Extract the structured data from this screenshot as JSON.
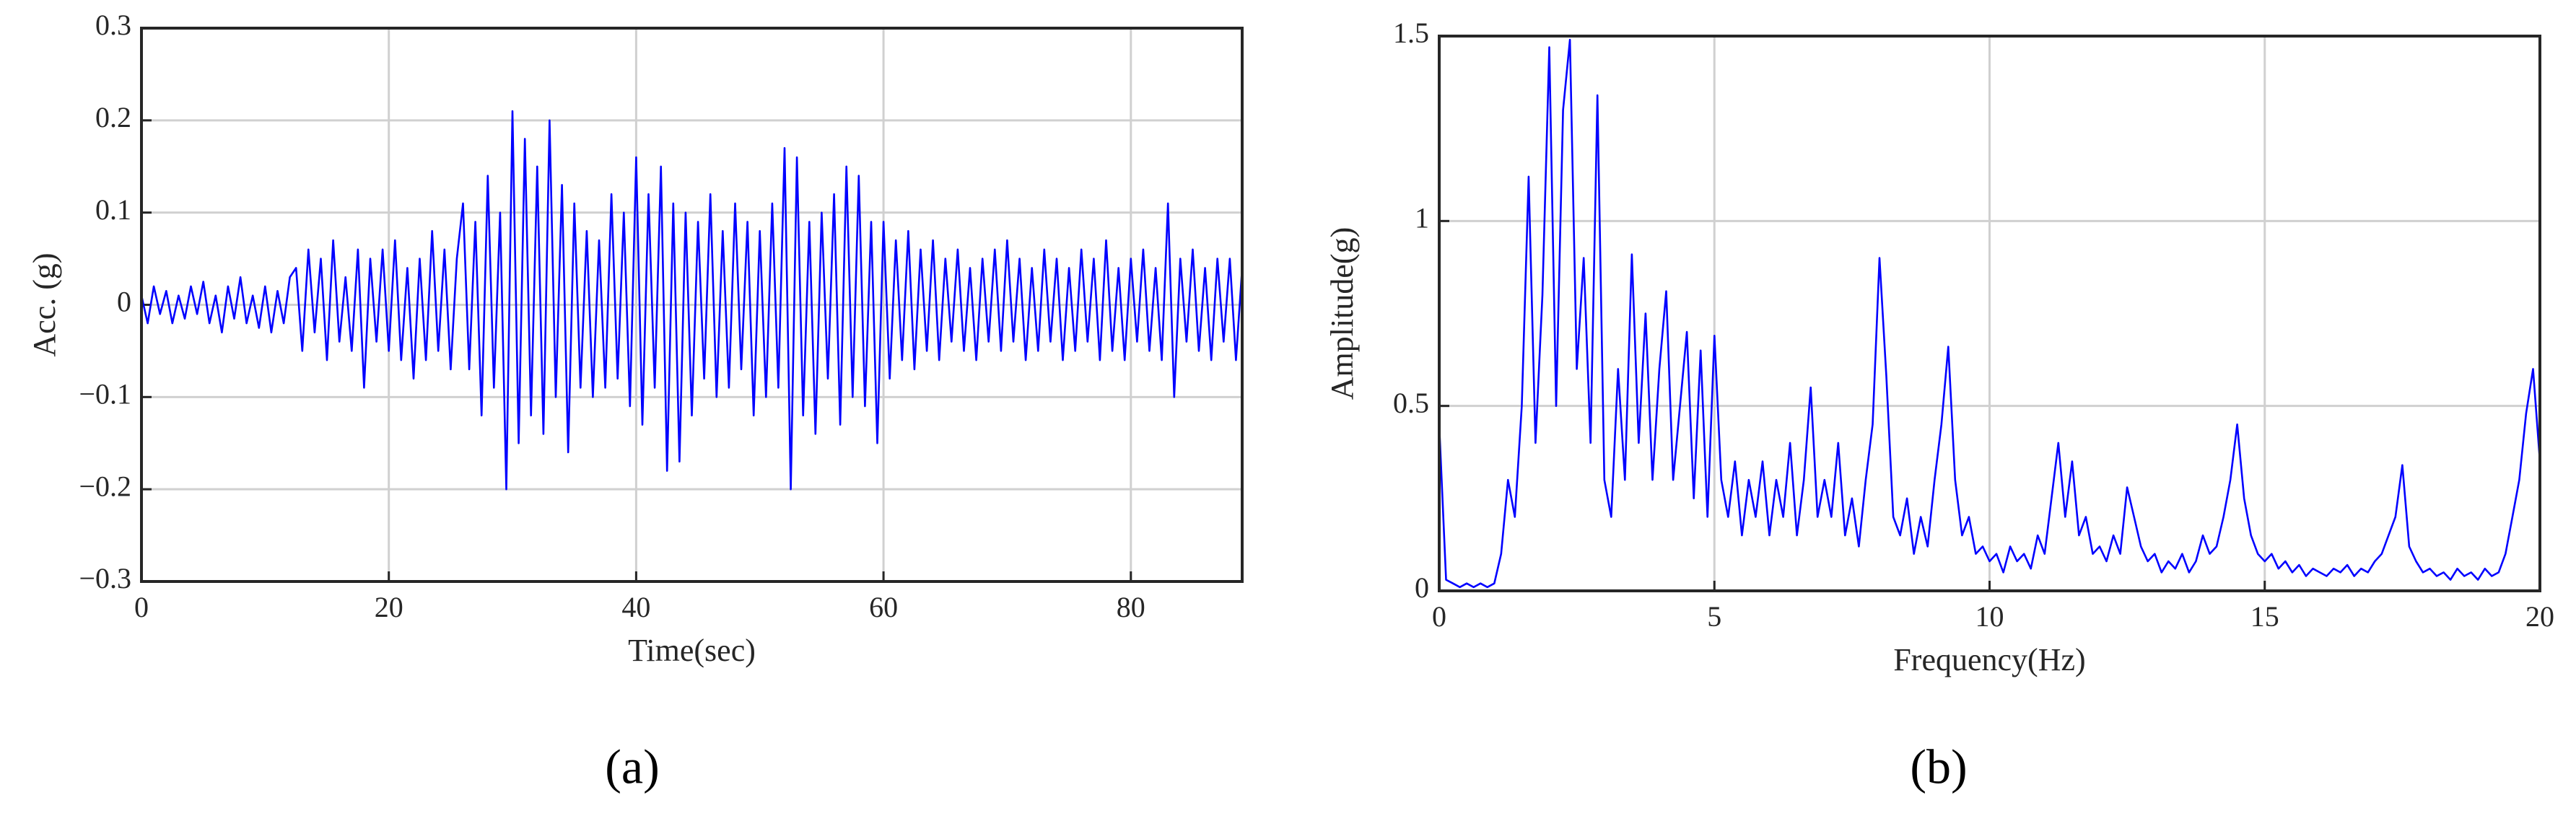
{
  "chart_data": [
    {
      "type": "line",
      "panel_label": "(a)",
      "xlabel": "Time(sec)",
      "ylabel": "Acc. (g)",
      "color": "#0000ff",
      "grid": true,
      "xlim": [
        0,
        89
      ],
      "xticks": [
        0,
        20,
        40,
        60,
        80
      ],
      "ylim": [
        -0.3,
        0.3
      ],
      "yticks": [
        {
          "value": -0.3,
          "label": "−0.3"
        },
        {
          "value": -0.2,
          "label": "−0.2"
        },
        {
          "value": -0.1,
          "label": "−0.1"
        },
        0,
        0.1,
        0.2,
        0.3
      ],
      "x": [
        0,
        0.5,
        1,
        1.5,
        2,
        2.5,
        3,
        3.5,
        4,
        4.5,
        5,
        5.5,
        6,
        6.5,
        7,
        7.5,
        8,
        8.5,
        9,
        9.5,
        10,
        10.5,
        11,
        11.5,
        12,
        12.5,
        13,
        13.5,
        14,
        14.5,
        15,
        15.5,
        16,
        16.5,
        17,
        17.5,
        18,
        18.5,
        19,
        19.5,
        20,
        20.5,
        21,
        21.5,
        22,
        22.5,
        23,
        23.5,
        24,
        24.5,
        25,
        25.5,
        26,
        26.5,
        27,
        27.5,
        28,
        28.5,
        29,
        29.5,
        30,
        30.5,
        31,
        31.5,
        32,
        32.5,
        33,
        33.5,
        34,
        34.5,
        35,
        35.5,
        36,
        36.5,
        37,
        37.5,
        38,
        38.5,
        39,
        39.5,
        40,
        40.5,
        41,
        41.5,
        42,
        42.5,
        43,
        43.5,
        44,
        44.5,
        45,
        45.5,
        46,
        46.5,
        47,
        47.5,
        48,
        48.5,
        49,
        49.5,
        50,
        50.5,
        51,
        51.5,
        52,
        52.5,
        53,
        53.5,
        54,
        54.5,
        55,
        55.5,
        56,
        56.5,
        57,
        57.5,
        58,
        58.5,
        59,
        59.5,
        60,
        60.5,
        61,
        61.5,
        62,
        62.5,
        63,
        63.5,
        64,
        64.5,
        65,
        65.5,
        66,
        66.5,
        67,
        67.5,
        68,
        68.5,
        69,
        69.5,
        70,
        70.5,
        71,
        71.5,
        72,
        72.5,
        73,
        73.5,
        74,
        74.5,
        75,
        75.5,
        76,
        76.5,
        77,
        77.5,
        78,
        78.5,
        79,
        79.5,
        80,
        80.5,
        81,
        81.5,
        82,
        82.5,
        83,
        83.5,
        84,
        84.5,
        85,
        85.5,
        86,
        86.5,
        87,
        87.5,
        88,
        88.5,
        89
      ],
      "values": [
        0.01,
        -0.02,
        0.02,
        -0.01,
        0.015,
        -0.02,
        0.01,
        -0.015,
        0.02,
        -0.01,
        0.025,
        -0.02,
        0.01,
        -0.03,
        0.02,
        -0.015,
        0.03,
        -0.02,
        0.01,
        -0.025,
        0.02,
        -0.03,
        0.015,
        -0.02,
        0.03,
        0.04,
        -0.05,
        0.06,
        -0.03,
        0.05,
        -0.06,
        0.07,
        -0.04,
        0.03,
        -0.05,
        0.06,
        -0.09,
        0.05,
        -0.04,
        0.06,
        -0.05,
        0.07,
        -0.06,
        0.04,
        -0.08,
        0.05,
        -0.06,
        0.08,
        -0.05,
        0.06,
        -0.07,
        0.05,
        0.11,
        -0.07,
        0.09,
        -0.12,
        0.14,
        -0.09,
        0.1,
        -0.2,
        0.21,
        -0.15,
        0.18,
        -0.12,
        0.15,
        -0.14,
        0.2,
        -0.1,
        0.13,
        -0.16,
        0.11,
        -0.09,
        0.08,
        -0.1,
        0.07,
        -0.09,
        0.12,
        -0.08,
        0.1,
        -0.11,
        0.16,
        -0.13,
        0.12,
        -0.09,
        0.15,
        -0.18,
        0.11,
        -0.17,
        0.1,
        -0.12,
        0.09,
        -0.08,
        0.12,
        -0.1,
        0.08,
        -0.09,
        0.11,
        -0.07,
        0.09,
        -0.12,
        0.08,
        -0.1,
        0.11,
        -0.09,
        0.17,
        -0.2,
        0.16,
        -0.12,
        0.09,
        -0.14,
        0.1,
        -0.08,
        0.12,
        -0.13,
        0.15,
        -0.1,
        0.14,
        -0.11,
        0.09,
        -0.15,
        0.09,
        -0.08,
        0.07,
        -0.06,
        0.08,
        -0.07,
        0.06,
        -0.05,
        0.07,
        -0.06,
        0.05,
        -0.04,
        0.06,
        -0.05,
        0.04,
        -0.06,
        0.05,
        -0.04,
        0.06,
        -0.05,
        0.07,
        -0.04,
        0.05,
        -0.06,
        0.04,
        -0.05,
        0.06,
        -0.04,
        0.05,
        -0.06,
        0.04,
        -0.05,
        0.06,
        -0.04,
        0.05,
        -0.06,
        0.07,
        -0.05,
        0.04,
        -0.06,
        0.05,
        -0.04,
        0.06,
        -0.05,
        0.04,
        -0.06,
        0.11,
        -0.1,
        0.05,
        -0.04,
        0.06,
        -0.05,
        0.04,
        -0.06,
        0.05,
        -0.04,
        0.05,
        -0.06,
        0.04
      ]
    },
    {
      "type": "line",
      "panel_label": "(b)",
      "xlabel": "Frequency(Hz)",
      "ylabel": "Amplitude(g)",
      "color": "#0000ff",
      "grid": true,
      "xlim": [
        0,
        20
      ],
      "xticks": [
        0,
        5,
        10,
        15,
        20
      ],
      "ylim": [
        0,
        1.5
      ],
      "yticks": [
        0,
        0.5,
        1,
        1.5
      ],
      "x": [
        0,
        0.125,
        0.25,
        0.375,
        0.5,
        0.625,
        0.75,
        0.875,
        1,
        1.125,
        1.25,
        1.375,
        1.5,
        1.625,
        1.75,
        1.875,
        2,
        2.125,
        2.25,
        2.375,
        2.5,
        2.625,
        2.75,
        2.875,
        3,
        3.125,
        3.25,
        3.375,
        3.5,
        3.625,
        3.75,
        3.875,
        4,
        4.125,
        4.25,
        4.375,
        4.5,
        4.625,
        4.75,
        4.875,
        5,
        5.125,
        5.25,
        5.375,
        5.5,
        5.625,
        5.75,
        5.875,
        6,
        6.125,
        6.25,
        6.375,
        6.5,
        6.625,
        6.75,
        6.875,
        7,
        7.125,
        7.25,
        7.375,
        7.5,
        7.625,
        7.75,
        7.875,
        8,
        8.125,
        8.25,
        8.375,
        8.5,
        8.625,
        8.75,
        8.875,
        9,
        9.125,
        9.25,
        9.375,
        9.5,
        9.625,
        9.75,
        9.875,
        10,
        10.125,
        10.25,
        10.375,
        10.5,
        10.625,
        10.75,
        10.875,
        11,
        11.125,
        11.25,
        11.375,
        11.5,
        11.625,
        11.75,
        11.875,
        12,
        12.125,
        12.25,
        12.375,
        12.5,
        12.625,
        12.75,
        12.875,
        13,
        13.125,
        13.25,
        13.375,
        13.5,
        13.625,
        13.75,
        13.875,
        14,
        14.125,
        14.25,
        14.375,
        14.5,
        14.625,
        14.75,
        14.875,
        15,
        15.125,
        15.25,
        15.375,
        15.5,
        15.625,
        15.75,
        15.875,
        16,
        16.125,
        16.25,
        16.375,
        16.5,
        16.625,
        16.75,
        16.875,
        17,
        17.125,
        17.25,
        17.375,
        17.5,
        17.625,
        17.75,
        17.875,
        18,
        18.125,
        18.25,
        18.375,
        18.5,
        18.625,
        18.75,
        18.875,
        19,
        19.125,
        19.25,
        19.375,
        19.5,
        19.625,
        19.75,
        19.875,
        20
      ],
      "values": [
        0.45,
        0.03,
        0.02,
        0.01,
        0.02,
        0.01,
        0.02,
        0.01,
        0.02,
        0.1,
        0.3,
        0.2,
        0.5,
        1.12,
        0.4,
        0.8,
        1.47,
        0.5,
        1.3,
        1.49,
        0.6,
        0.9,
        0.4,
        1.34,
        0.3,
        0.2,
        0.6,
        0.3,
        0.91,
        0.4,
        0.75,
        0.3,
        0.6,
        0.81,
        0.3,
        0.5,
        0.7,
        0.25,
        0.65,
        0.2,
        0.69,
        0.3,
        0.2,
        0.35,
        0.15,
        0.3,
        0.2,
        0.35,
        0.15,
        0.3,
        0.2,
        0.4,
        0.15,
        0.3,
        0.55,
        0.2,
        0.3,
        0.2,
        0.4,
        0.15,
        0.25,
        0.12,
        0.3,
        0.45,
        0.9,
        0.58,
        0.2,
        0.15,
        0.25,
        0.1,
        0.2,
        0.12,
        0.3,
        0.45,
        0.66,
        0.3,
        0.15,
        0.2,
        0.1,
        0.12,
        0.08,
        0.1,
        0.05,
        0.12,
        0.08,
        0.1,
        0.06,
        0.15,
        0.1,
        0.25,
        0.4,
        0.2,
        0.35,
        0.15,
        0.2,
        0.1,
        0.12,
        0.08,
        0.15,
        0.1,
        0.28,
        0.2,
        0.12,
        0.08,
        0.1,
        0.05,
        0.08,
        0.06,
        0.1,
        0.05,
        0.08,
        0.15,
        0.1,
        0.12,
        0.2,
        0.3,
        0.45,
        0.25,
        0.15,
        0.1,
        0.08,
        0.1,
        0.06,
        0.08,
        0.05,
        0.07,
        0.04,
        0.06,
        0.05,
        0.04,
        0.06,
        0.05,
        0.07,
        0.04,
        0.06,
        0.05,
        0.08,
        0.1,
        0.15,
        0.2,
        0.34,
        0.12,
        0.08,
        0.05,
        0.06,
        0.04,
        0.05,
        0.03,
        0.06,
        0.04,
        0.05,
        0.03,
        0.06,
        0.04,
        0.05,
        0.1,
        0.2,
        0.3,
        0.48,
        0.6,
        0.35
      ]
    }
  ]
}
